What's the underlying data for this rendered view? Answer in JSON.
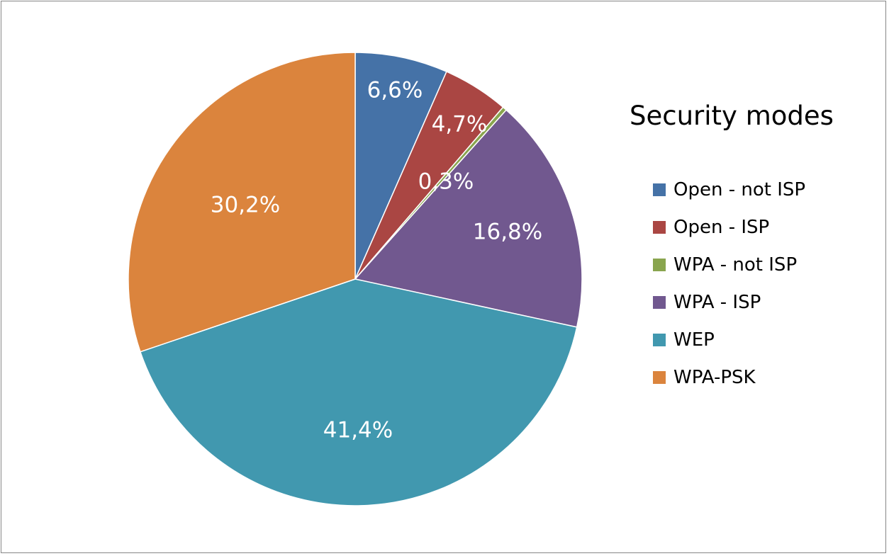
{
  "chart_data": {
    "type": "pie",
    "title": "Security modes",
    "legend_position": "right",
    "categories": [
      "Open - not ISP",
      "Open - ISP",
      "WPA - not ISP",
      "WPA - ISP",
      "WEP",
      "WPA-PSK"
    ],
    "values": [
      6.6,
      4.7,
      0.3,
      16.8,
      41.4,
      30.2
    ],
    "labels": [
      "6,6%",
      "4,7%",
      "0,3%",
      "16,8%",
      "41,4%",
      "30,2%"
    ],
    "colors": [
      "#4572A7",
      "#AA4643",
      "#89A54E",
      "#71588F",
      "#4198AF",
      "#DB843D"
    ]
  }
}
